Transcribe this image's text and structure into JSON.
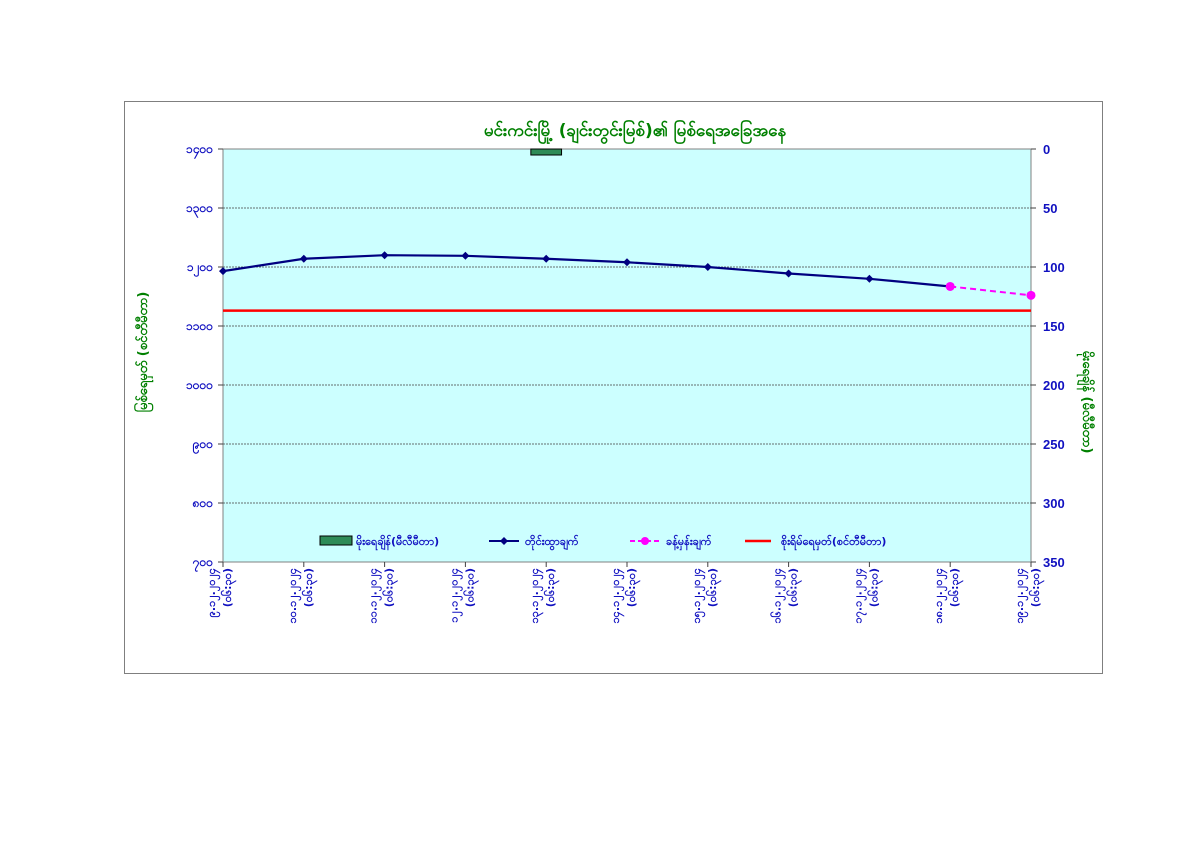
{
  "chart_data": {
    "type": "line",
    "title": "မင်းကင်းမြို့ (ချင်းတွင်းမြစ်)၏ မြစ်ရေအခြေအနေ",
    "ylabel_left": "မြစ်ရေမှတ် (စင်တီမီတာ)",
    "ylabel_right": "မိုးရေချိန် (မီလီမီတာ)",
    "left_axis": {
      "min": 700,
      "max": 1400,
      "step": 100,
      "tick_labels": [
        "၇၀၀",
        "၈၀၀",
        "၉၀၀",
        "၁၀၀၀",
        "၁၁၀၀",
        "၁၂၀၀",
        "၁၃၀၀",
        "၁၄၀၀"
      ]
    },
    "right_axis": {
      "min": 0,
      "max": 350,
      "step": 50,
      "reversed": true,
      "tick_labels": [
        "0",
        "50",
        "100",
        "150",
        "200",
        "250",
        "300",
        "350"
      ]
    },
    "categories": [
      [
        "၉.၁၂.၂၀၂၄",
        "(၀၆:၃၀)"
      ],
      [
        "၁၀.၁၂.၂၀၂၄",
        "(၀၆:၃၀)"
      ],
      [
        "၁၁.၁၂.၂၀၂၄",
        "(၀၆:၃၀)"
      ],
      [
        "၁၂.၁၂.၂၀၂၄",
        "(၀၆:၃၀)"
      ],
      [
        "၁၃.၁၂.၂၀၂၄",
        "(၀၆:၃၀)"
      ],
      [
        "၁၄.၁၂.၂၀၂၄",
        "(၀၆:၃၀)"
      ],
      [
        "၁၅.၁၂.၂၀၂၄",
        "(၀၆:၃၀)"
      ],
      [
        "၁၆.၁၂.၂၀၂၄",
        "(၀၆:၃၀)"
      ],
      [
        "၁၇.၁၂.၂၀၂၄",
        "(၀၆:၃၀)"
      ],
      [
        "၁၈.၁၂.၂၀၂၄",
        "(၀၆:၃၀)"
      ],
      [
        "၁၉.၁၂.၂၀၂၄",
        "(၀၆:၃၀)"
      ]
    ],
    "series": [
      {
        "name": "မိုးရေချိန်(မီလီမီတာ)",
        "kind": "bar",
        "axis": "right",
        "color": "#2e8b57",
        "values": [
          null,
          null,
          null,
          null,
          0.1,
          null,
          null,
          null,
          null,
          null,
          null
        ]
      },
      {
        "name": "တိုင်းထွာချက်",
        "kind": "line",
        "axis": "left",
        "color": "#000080",
        "values": [
          1193,
          1214,
          1220,
          1219,
          1214,
          1208,
          1200,
          1189,
          1180,
          1167,
          null
        ]
      },
      {
        "name": "ခန့်မှန်းချက်",
        "kind": "dashed-line",
        "axis": "left",
        "color": "#ff00ff",
        "values": [
          null,
          null,
          null,
          null,
          null,
          null,
          null,
          null,
          null,
          1167,
          1152
        ]
      },
      {
        "name": "စိုးရိမ်ရေမှတ်(စင်တီမီတာ)",
        "kind": "constant-line",
        "axis": "left",
        "color": "#ff0000",
        "value": 1126
      }
    ],
    "plot_background": "#ccffff",
    "grid": true,
    "legend_position": "bottom-inside"
  }
}
